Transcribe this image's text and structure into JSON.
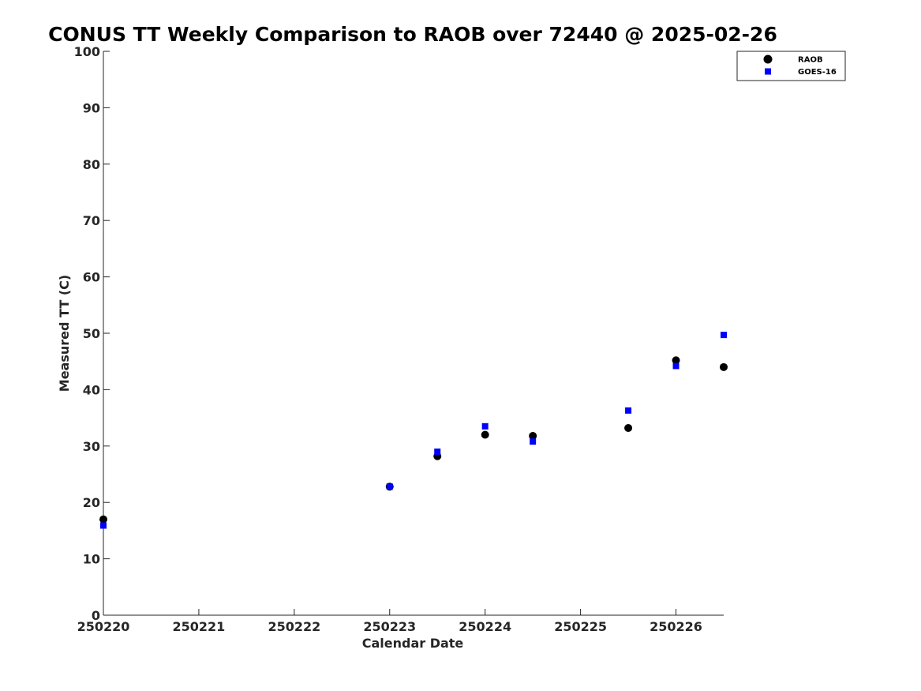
{
  "chart_data": {
    "type": "scatter",
    "title": "CONUS TT Weekly Comparison to RAOB over 72440 @ 2025-02-26",
    "xlabel": "Calendar Date",
    "ylabel": "Measured TT (C)",
    "xlim": [
      0,
      6.5
    ],
    "ylim": [
      0,
      100
    ],
    "x_ticks": [
      {
        "pos": 0,
        "label": "250220"
      },
      {
        "pos": 1,
        "label": "250221"
      },
      {
        "pos": 2,
        "label": "250222"
      },
      {
        "pos": 3,
        "label": "250223"
      },
      {
        "pos": 4,
        "label": "250224"
      },
      {
        "pos": 5,
        "label": "250225"
      },
      {
        "pos": 6,
        "label": "250226"
      }
    ],
    "y_ticks": [
      0,
      10,
      20,
      30,
      40,
      50,
      60,
      70,
      80,
      90,
      100
    ],
    "grid": false,
    "legend_position": "top-right",
    "series": [
      {
        "name": "RAOB",
        "marker": "circle",
        "color": "#000000",
        "points": [
          [
            0,
            17.0
          ],
          [
            3,
            22.8
          ],
          [
            3.5,
            28.2
          ],
          [
            4,
            32.0
          ],
          [
            4.5,
            31.8
          ],
          [
            5.5,
            33.2
          ],
          [
            6,
            45.2
          ],
          [
            6.5,
            44.0
          ]
        ]
      },
      {
        "name": "GOES-16",
        "marker": "square",
        "color": "#0000ff",
        "points": [
          [
            0,
            15.9
          ],
          [
            3,
            22.8
          ],
          [
            3.5,
            29.0
          ],
          [
            4,
            33.5
          ],
          [
            4.5,
            30.8
          ],
          [
            5.5,
            36.3
          ],
          [
            6,
            44.2
          ],
          [
            6.5,
            49.7
          ]
        ]
      }
    ]
  }
}
